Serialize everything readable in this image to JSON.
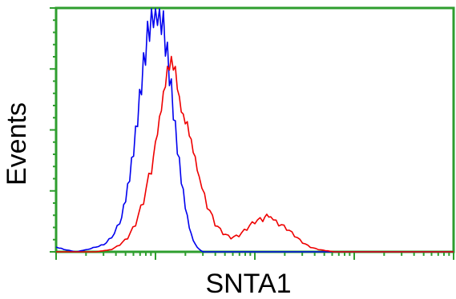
{
  "chart_data": {
    "type": "line",
    "title": "",
    "xlabel": "SNTA1",
    "ylabel": "Events",
    "x_scale": "log",
    "x_decades": 4,
    "xlim": [
      0,
      1
    ],
    "ylim": [
      0,
      1
    ],
    "grid": false,
    "legend": "none",
    "colors": {
      "frame": "#2e9e2e",
      "tick": "#2e9e2e"
    },
    "series": [
      {
        "color": "#0000ee",
        "x": [
          0.0,
          0.02,
          0.05,
          0.08,
          0.1,
          0.12,
          0.14,
          0.16,
          0.17,
          0.18,
          0.19,
          0.2,
          0.21,
          0.22,
          0.23,
          0.24,
          0.25,
          0.26,
          0.27,
          0.28,
          0.29,
          0.3,
          0.31,
          0.32,
          0.33,
          0.34,
          0.35,
          0.36,
          0.37,
          0.38,
          0.39,
          0.4,
          0.42,
          0.45,
          1.0
        ],
        "y": [
          0.02,
          0.01,
          0.0,
          0.01,
          0.02,
          0.03,
          0.06,
          0.12,
          0.18,
          0.26,
          0.36,
          0.48,
          0.62,
          0.76,
          0.88,
          0.97,
          1.0,
          0.99,
          0.92,
          0.8,
          0.66,
          0.5,
          0.36,
          0.24,
          0.14,
          0.07,
          0.03,
          0.01,
          0.0,
          0.0,
          0.0,
          0.0,
          0.0,
          0.0,
          0.0
        ]
      },
      {
        "color": "#ee0000",
        "x": [
          0.0,
          0.05,
          0.1,
          0.14,
          0.16,
          0.18,
          0.2,
          0.22,
          0.24,
          0.25,
          0.26,
          0.27,
          0.28,
          0.29,
          0.3,
          0.31,
          0.32,
          0.33,
          0.34,
          0.35,
          0.36,
          0.38,
          0.4,
          0.42,
          0.44,
          0.46,
          0.48,
          0.5,
          0.52,
          0.53,
          0.54,
          0.56,
          0.58,
          0.6,
          0.62,
          0.64,
          0.66,
          0.7,
          0.75,
          1.0
        ],
        "y": [
          0.0,
          0.0,
          0.0,
          0.01,
          0.03,
          0.06,
          0.12,
          0.22,
          0.36,
          0.44,
          0.54,
          0.64,
          0.74,
          0.78,
          0.74,
          0.62,
          0.55,
          0.52,
          0.45,
          0.38,
          0.3,
          0.2,
          0.12,
          0.08,
          0.06,
          0.07,
          0.1,
          0.13,
          0.14,
          0.15,
          0.14,
          0.12,
          0.1,
          0.07,
          0.04,
          0.02,
          0.01,
          0.0,
          0.0,
          0.0
        ]
      }
    ]
  }
}
